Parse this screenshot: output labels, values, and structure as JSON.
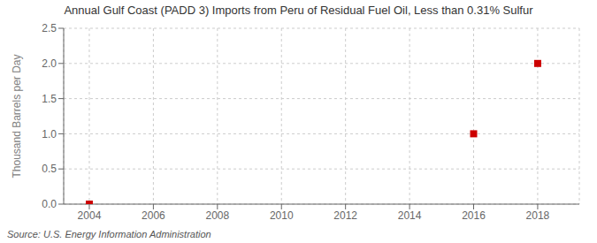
{
  "chart_data": {
    "type": "scatter",
    "title": "Annual Gulf Coast (PADD 3) Imports from Peru of Residual Fuel Oil, Less than 0.31% Sulfur",
    "y_label": "Thousand Barrels per Day",
    "annotations": [
      "Source: U.S. Energy Information Administration"
    ],
    "x": [
      2004,
      2016,
      2018
    ],
    "values": [
      0.0,
      1.0,
      2.0
    ],
    "color": "#cc0000",
    "marker": "square",
    "xlim": [
      2003.2,
      2019.3
    ],
    "ylim": [
      0.0,
      2.5
    ],
    "xticks": [
      2004,
      2006,
      2008,
      2010,
      2012,
      2014,
      2016,
      2018
    ],
    "yticks": [
      {
        "value": 0.0,
        "label": "0.0"
      },
      0.5,
      {
        "value": 1.0,
        "label": "1.0"
      },
      1.5,
      {
        "value": 2.0,
        "label": "2.0"
      },
      2.5
    ],
    "grid": true
  }
}
